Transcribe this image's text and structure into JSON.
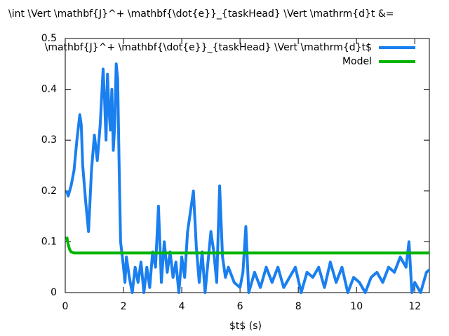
{
  "chart_data": {
    "type": "line",
    "title": "\\int \\Vert \\mathbf{J}^+ \\mathbf{\\dot{e}}_{taskHead} \\Vert \\mathrm{d}t &=",
    "xlabel": "$t$ (s)",
    "xlim": [
      0,
      12.5
    ],
    "ylim": [
      0,
      0.5
    ],
    "xticks": [
      0,
      2,
      4,
      6,
      8,
      10,
      12
    ],
    "yticks": [
      0,
      0.1,
      0.2,
      0.3,
      0.4,
      0.5
    ],
    "legend": "top-right",
    "series": [
      {
        "name": "\\mathbf{J}^+ \\mathbf{\\dot{e}}_{taskHead} \\Vert \\mathrm{d}t$",
        "color": "#1a7fef",
        "x": [
          0.05,
          0.1,
          0.2,
          0.3,
          0.4,
          0.5,
          0.55,
          0.6,
          0.7,
          0.8,
          0.9,
          1.0,
          1.1,
          1.2,
          1.3,
          1.35,
          1.4,
          1.45,
          1.5,
          1.55,
          1.6,
          1.65,
          1.7,
          1.75,
          1.8,
          1.85,
          1.9,
          2.0,
          2.05,
          2.1,
          2.2,
          2.3,
          2.4,
          2.5,
          2.6,
          2.7,
          2.8,
          2.9,
          3.0,
          3.1,
          3.2,
          3.3,
          3.4,
          3.5,
          3.6,
          3.7,
          3.8,
          3.9,
          4.0,
          4.1,
          4.2,
          4.3,
          4.4,
          4.5,
          4.6,
          4.7,
          4.8,
          4.9,
          5.0,
          5.1,
          5.2,
          5.3,
          5.4,
          5.5,
          5.6,
          5.8,
          6.0,
          6.1,
          6.2,
          6.3,
          6.5,
          6.7,
          6.9,
          7.1,
          7.3,
          7.5,
          7.7,
          7.9,
          8.1,
          8.3,
          8.5,
          8.7,
          8.9,
          9.1,
          9.3,
          9.5,
          9.7,
          9.9,
          10.1,
          10.3,
          10.5,
          10.7,
          10.9,
          11.1,
          11.3,
          11.5,
          11.7,
          11.8,
          11.9,
          12.0,
          12.2,
          12.4,
          12.5
        ],
        "values": [
          0.2,
          0.19,
          0.21,
          0.24,
          0.3,
          0.35,
          0.33,
          0.25,
          0.18,
          0.12,
          0.24,
          0.31,
          0.26,
          0.33,
          0.44,
          0.38,
          0.3,
          0.43,
          0.36,
          0.32,
          0.4,
          0.28,
          0.33,
          0.45,
          0.42,
          0.25,
          0.1,
          0.05,
          0.02,
          0.07,
          0.03,
          0.0,
          0.05,
          0.02,
          0.06,
          0.0,
          0.05,
          0.01,
          0.08,
          0.05,
          0.17,
          0.02,
          0.1,
          0.04,
          0.08,
          0.03,
          0.06,
          0.0,
          0.07,
          0.03,
          0.12,
          0.16,
          0.2,
          0.09,
          0.02,
          0.08,
          0.0,
          0.06,
          0.12,
          0.08,
          0.02,
          0.21,
          0.07,
          0.03,
          0.05,
          0.02,
          0.01,
          0.04,
          0.13,
          0.0,
          0.04,
          0.01,
          0.05,
          0.02,
          0.05,
          0.01,
          0.03,
          0.05,
          0.0,
          0.04,
          0.03,
          0.05,
          0.01,
          0.06,
          0.02,
          0.05,
          0.0,
          0.03,
          0.02,
          0.0,
          0.03,
          0.04,
          0.02,
          0.05,
          0.04,
          0.07,
          0.05,
          0.1,
          0.0,
          0.02,
          0.0,
          0.04,
          0.045
        ]
      },
      {
        "name": "Model",
        "color": "#00b400",
        "x": [
          0.05,
          0.1,
          0.15,
          0.2,
          0.3,
          12.5
        ],
        "values": [
          0.11,
          0.095,
          0.085,
          0.08,
          0.078,
          0.078
        ]
      }
    ]
  }
}
